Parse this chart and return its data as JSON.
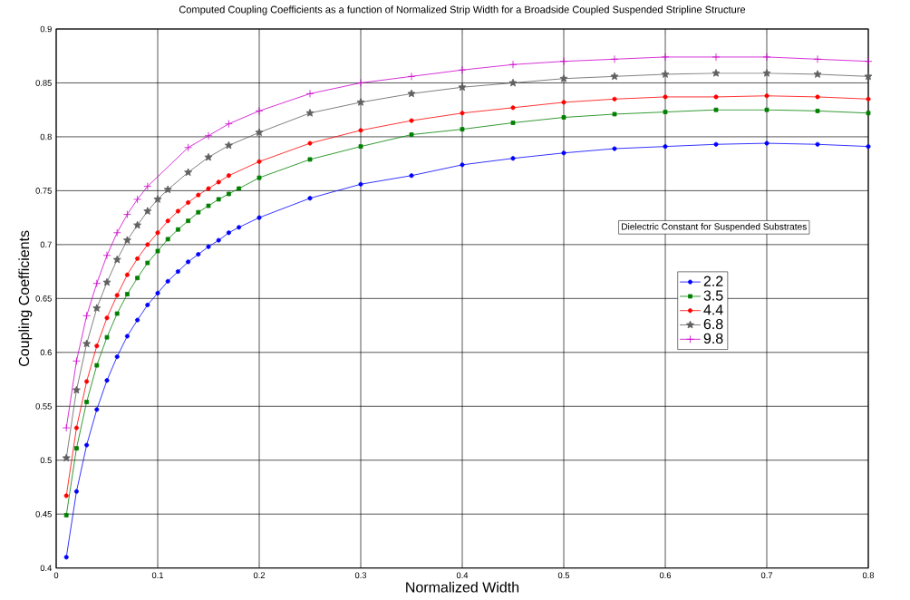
{
  "chart_data": {
    "type": "line",
    "title": "Computed Coupling Coefficients as a function of Normalized  Strip Width for a  Broadside Coupled Suspended Stripline Structure",
    "xlabel": "Normalized Width",
    "ylabel": "Coupling Coefficients",
    "legend_title": "Dielectric Constant for Suspended Substrates",
    "xlim": [
      0,
      0.8
    ],
    "xticks": [
      0,
      0.1,
      0.2,
      0.3,
      0.4,
      0.5,
      0.6,
      0.7,
      0.8
    ],
    "ylim": [
      0.4,
      0.9
    ],
    "yticks": [
      0.4,
      0.45,
      0.5,
      0.55,
      0.6,
      0.65,
      0.7,
      0.75,
      0.8,
      0.85,
      0.9
    ],
    "grid": true,
    "legend": "right",
    "line_style": "solid",
    "series": [
      {
        "name": "2.2",
        "color": "#0000ff",
        "marker": "circle",
        "x": [
          0.01,
          0.02,
          0.03,
          0.04,
          0.05,
          0.06,
          0.07,
          0.08,
          0.09,
          0.1,
          0.11,
          0.12,
          0.13,
          0.14,
          0.15,
          0.16,
          0.17,
          0.18,
          0.2,
          0.25,
          0.3,
          0.35,
          0.4,
          0.45,
          0.5,
          0.55,
          0.6,
          0.65,
          0.7,
          0.75,
          0.8
        ],
        "values": [
          0.41,
          0.471,
          0.514,
          0.547,
          0.574,
          0.596,
          0.615,
          0.63,
          0.644,
          0.655,
          0.666,
          0.675,
          0.684,
          0.691,
          0.698,
          0.704,
          0.711,
          0.716,
          0.725,
          0.743,
          0.756,
          0.764,
          0.774,
          0.78,
          0.785,
          0.789,
          0.791,
          0.793,
          0.794,
          0.793,
          0.791
        ]
      },
      {
        "name": "3.5",
        "color": "#008000",
        "marker": "square",
        "x": [
          0.01,
          0.02,
          0.03,
          0.04,
          0.05,
          0.06,
          0.07,
          0.08,
          0.09,
          0.1,
          0.11,
          0.12,
          0.13,
          0.14,
          0.15,
          0.16,
          0.17,
          0.18,
          0.2,
          0.25,
          0.3,
          0.35,
          0.4,
          0.45,
          0.5,
          0.55,
          0.6,
          0.65,
          0.7,
          0.75,
          0.8
        ],
        "values": [
          0.449,
          0.511,
          0.554,
          0.588,
          0.614,
          0.636,
          0.654,
          0.669,
          0.683,
          0.694,
          0.705,
          0.714,
          0.722,
          0.73,
          0.736,
          0.742,
          0.747,
          0.752,
          0.762,
          0.779,
          0.791,
          0.802,
          0.807,
          0.813,
          0.818,
          0.821,
          0.823,
          0.825,
          0.825,
          0.824,
          0.822
        ]
      },
      {
        "name": "4.4",
        "color": "#ff0000",
        "marker": "circle",
        "x": [
          0.01,
          0.02,
          0.03,
          0.04,
          0.05,
          0.06,
          0.07,
          0.08,
          0.09,
          0.1,
          0.11,
          0.12,
          0.13,
          0.14,
          0.15,
          0.16,
          0.17,
          0.2,
          0.25,
          0.3,
          0.35,
          0.4,
          0.45,
          0.5,
          0.55,
          0.6,
          0.65,
          0.7,
          0.75,
          0.8
        ],
        "values": [
          0.467,
          0.53,
          0.573,
          0.606,
          0.632,
          0.653,
          0.672,
          0.687,
          0.7,
          0.711,
          0.722,
          0.731,
          0.739,
          0.746,
          0.752,
          0.758,
          0.764,
          0.777,
          0.794,
          0.806,
          0.815,
          0.822,
          0.827,
          0.832,
          0.835,
          0.837,
          0.837,
          0.838,
          0.837,
          0.835
        ]
      },
      {
        "name": "6.8",
        "color": "#606060",
        "marker": "star",
        "x": [
          0.01,
          0.02,
          0.03,
          0.04,
          0.05,
          0.06,
          0.07,
          0.08,
          0.09,
          0.1,
          0.11,
          0.13,
          0.15,
          0.17,
          0.2,
          0.25,
          0.3,
          0.35,
          0.4,
          0.45,
          0.5,
          0.55,
          0.6,
          0.65,
          0.7,
          0.75,
          0.8
        ],
        "values": [
          0.502,
          0.565,
          0.608,
          0.641,
          0.665,
          0.686,
          0.704,
          0.718,
          0.731,
          0.742,
          0.751,
          0.767,
          0.781,
          0.792,
          0.804,
          0.822,
          0.832,
          0.84,
          0.846,
          0.85,
          0.854,
          0.856,
          0.858,
          0.859,
          0.859,
          0.858,
          0.856
        ]
      },
      {
        "name": "9.8",
        "color": "#cc00cc",
        "marker": "cross",
        "x": [
          0.01,
          0.02,
          0.03,
          0.04,
          0.05,
          0.06,
          0.07,
          0.08,
          0.09,
          0.13,
          0.15,
          0.17,
          0.2,
          0.25,
          0.3,
          0.35,
          0.4,
          0.45,
          0.5,
          0.55,
          0.6,
          0.65,
          0.7,
          0.75,
          0.8
        ],
        "values": [
          0.53,
          0.592,
          0.634,
          0.664,
          0.69,
          0.711,
          0.728,
          0.742,
          0.754,
          0.79,
          0.801,
          0.812,
          0.824,
          0.84,
          0.85,
          0.856,
          0.862,
          0.867,
          0.87,
          0.872,
          0.874,
          0.874,
          0.874,
          0.872,
          0.87
        ]
      }
    ]
  }
}
